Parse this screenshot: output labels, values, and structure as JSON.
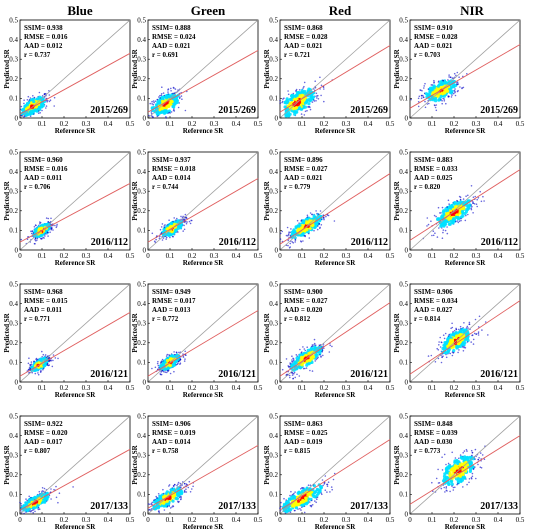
{
  "columns": [
    "Blue",
    "Green",
    "Red",
    "NIR"
  ],
  "colors": {
    "one_to_one_line": "#a0a0a0",
    "fit_line": "#e06060",
    "density_low": "#0000c8",
    "density_mid": "#00e0ff",
    "density_high": "#ffff00",
    "density_peak": "#ff0000"
  },
  "chart_data": [
    {
      "type": "scatter",
      "panel": "blue-2015-269",
      "band": "Blue",
      "date": "2015/269",
      "xlabel": "Reference SR",
      "ylabel": "Predicted SR",
      "xlim": [
        0,
        0.5
      ],
      "ylim": [
        0,
        0.5
      ],
      "xticks": [
        "0",
        "0.1",
        "0.2",
        "0.3",
        "0.4",
        "0.5"
      ],
      "yticks": [
        "0",
        "0.1",
        "0.2",
        "0.3",
        "0.4",
        "0.5"
      ],
      "stats": [
        "SSIM= 0.938",
        "RMSE = 0.016",
        "AAD = 0.012",
        "r =  0.737"
      ],
      "fit": {
        "slope": 0.62,
        "intercept": 0.02
      },
      "density": {
        "center": [
          0.06,
          0.06
        ],
        "spread": [
          0.035,
          0.03
        ],
        "corr": 0.6
      }
    },
    {
      "type": "scatter",
      "panel": "green-2015-269",
      "band": "Green",
      "date": "2015/269",
      "xlabel": "Reference SR",
      "ylabel": "Predicted SR",
      "xlim": [
        0,
        0.5
      ],
      "ylim": [
        0,
        0.5
      ],
      "xticks": [
        "0",
        "0.1",
        "0.2",
        "0.3",
        "0.4",
        "0.5"
      ],
      "yticks": [
        "0",
        "0.1",
        "0.2",
        "0.3",
        "0.4",
        "0.5"
      ],
      "stats": [
        "SSIM= 0.888",
        "RMSE = 0.024",
        "AAD = 0.021",
        "r =  0.691"
      ],
      "fit": {
        "slope": 0.63,
        "intercept": 0.03
      },
      "density": {
        "center": [
          0.08,
          0.07
        ],
        "spread": [
          0.04,
          0.035
        ],
        "corr": 0.55
      }
    },
    {
      "type": "scatter",
      "panel": "red-2015-269",
      "band": "Red",
      "date": "2015/269",
      "xlabel": "Reference SR",
      "ylabel": "Predicted SR",
      "xlim": [
        0,
        0.5
      ],
      "ylim": [
        0,
        0.5
      ],
      "xticks": [
        "0",
        "0.1",
        "0.2",
        "0.3",
        "0.4",
        "0.5"
      ],
      "yticks": [
        "0",
        "0.1",
        "0.2",
        "0.3",
        "0.4",
        "0.5"
      ],
      "stats": [
        "SSIM= 0.868",
        "RMSE = 0.028",
        "AAD = 0.021",
        "r =  0.721"
      ],
      "fit": {
        "slope": 0.68,
        "intercept": 0.03
      },
      "density": {
        "center": [
          0.08,
          0.08
        ],
        "spread": [
          0.05,
          0.045
        ],
        "corr": 0.6
      }
    },
    {
      "type": "scatter",
      "panel": "nir-2015-269",
      "band": "NIR",
      "date": "2015/269",
      "xlabel": "Reference SR",
      "ylabel": "Predicted SR",
      "xlim": [
        0,
        0.5
      ],
      "ylim": [
        0,
        0.5
      ],
      "xticks": [
        "0",
        "0.1",
        "0.2",
        "0.3",
        "0.4",
        "0.5"
      ],
      "yticks": [
        "0",
        "0.1",
        "0.2",
        "0.3",
        "0.4",
        "0.5"
      ],
      "stats": [
        "SSIM= 0.910",
        "RMSE = 0.028",
        "AAD = 0.021",
        "r =  0.703"
      ],
      "fit": {
        "slope": 0.65,
        "intercept": 0.05
      },
      "density": {
        "center": [
          0.14,
          0.14
        ],
        "spread": [
          0.045,
          0.035
        ],
        "corr": 0.55
      }
    },
    {
      "type": "scatter",
      "panel": "blue-2016-112",
      "band": "Blue",
      "date": "2016/112",
      "xlabel": "Reference SR",
      "ylabel": "Predicted SR",
      "xlim": [
        0,
        0.5
      ],
      "ylim": [
        0,
        0.5
      ],
      "xticks": [
        "0",
        "0.1",
        "0.2",
        "0.3",
        "0.4",
        "0.5"
      ],
      "yticks": [
        "0",
        "0.1",
        "0.2",
        "0.3",
        "0.4",
        "0.5"
      ],
      "stats": [
        "SSIM= 0.960",
        "RMSE = 0.016",
        "AAD = 0.011",
        "r =  0.706"
      ],
      "fit": {
        "slope": 0.6,
        "intercept": 0.04
      },
      "density": {
        "center": [
          0.1,
          0.1
        ],
        "spread": [
          0.025,
          0.022
        ],
        "corr": 0.6
      }
    },
    {
      "type": "scatter",
      "panel": "green-2016-112",
      "band": "Green",
      "date": "2016/112",
      "xlabel": "Reference SR",
      "ylabel": "Predicted SR",
      "xlim": [
        0,
        0.5
      ],
      "ylim": [
        0,
        0.5
      ],
      "xticks": [
        "0",
        "0.1",
        "0.2",
        "0.3",
        "0.4",
        "0.5"
      ],
      "yticks": [
        "0",
        "0.1",
        "0.2",
        "0.3",
        "0.4",
        "0.5"
      ],
      "stats": [
        "SSIM= 0.937",
        "RMSE = 0.018",
        "AAD = 0.014",
        "r =  0.744"
      ],
      "fit": {
        "slope": 0.65,
        "intercept": 0.04
      },
      "density": {
        "center": [
          0.11,
          0.11
        ],
        "spread": [
          0.03,
          0.025
        ],
        "corr": 0.65
      }
    },
    {
      "type": "scatter",
      "panel": "red-2016-112",
      "band": "Red",
      "date": "2016/112",
      "xlabel": "Reference SR",
      "ylabel": "Predicted SR",
      "xlim": [
        0,
        0.5
      ],
      "ylim": [
        0,
        0.5
      ],
      "xticks": [
        "0",
        "0.1",
        "0.2",
        "0.3",
        "0.4",
        "0.5"
      ],
      "yticks": [
        "0",
        "0.1",
        "0.2",
        "0.3",
        "0.4",
        "0.5"
      ],
      "stats": [
        "SSIM= 0.896",
        "RMSE = 0.027",
        "AAD = 0.021",
        "r =  0.779"
      ],
      "fit": {
        "slope": 0.72,
        "intercept": 0.03
      },
      "density": {
        "center": [
          0.12,
          0.12
        ],
        "spread": [
          0.045,
          0.04
        ],
        "corr": 0.75
      }
    },
    {
      "type": "scatter",
      "panel": "nir-2016-112",
      "band": "NIR",
      "date": "2016/112",
      "xlabel": "Reference SR",
      "ylabel": "Predicted SR",
      "xlim": [
        0,
        0.5
      ],
      "ylim": [
        0,
        0.5
      ],
      "xticks": [
        "0",
        "0.1",
        "0.2",
        "0.3",
        "0.4",
        "0.5"
      ],
      "yticks": [
        "0",
        "0.1",
        "0.2",
        "0.3",
        "0.4",
        "0.5"
      ],
      "stats": [
        "SSIM= 0.883",
        "RMSE = 0.033",
        "AAD = 0.025",
        "r =  0.820"
      ],
      "fit": {
        "slope": 0.72,
        "intercept": 0.05
      },
      "density": {
        "center": [
          0.2,
          0.19
        ],
        "spread": [
          0.05,
          0.045
        ],
        "corr": 0.7
      }
    },
    {
      "type": "scatter",
      "panel": "blue-2016-121",
      "band": "Blue",
      "date": "2016/121",
      "xlabel": "Reference SR",
      "ylabel": "Predicted SR",
      "xlim": [
        0,
        0.5
      ],
      "ylim": [
        0,
        0.5
      ],
      "xticks": [
        "0",
        "0.1",
        "0.2",
        "0.3",
        "0.4",
        "0.5"
      ],
      "yticks": [
        "0",
        "0.1",
        "0.2",
        "0.3",
        "0.4",
        "0.5"
      ],
      "stats": [
        "SSIM= 0.968",
        "RMSE = 0.015",
        "AAD = 0.011",
        "r =  0.771"
      ],
      "fit": {
        "slope": 0.65,
        "intercept": 0.03
      },
      "density": {
        "center": [
          0.09,
          0.09
        ],
        "spread": [
          0.025,
          0.022
        ],
        "corr": 0.65
      }
    },
    {
      "type": "scatter",
      "panel": "green-2016-121",
      "band": "Green",
      "date": "2016/121",
      "xlabel": "Reference SR",
      "ylabel": "Predicted SR",
      "xlim": [
        0,
        0.5
      ],
      "ylim": [
        0,
        0.5
      ],
      "xticks": [
        "0",
        "0.1",
        "0.2",
        "0.3",
        "0.4",
        "0.5"
      ],
      "yticks": [
        "0",
        "0.1",
        "0.2",
        "0.3",
        "0.4",
        "0.5"
      ],
      "stats": [
        "SSIM= 0.949",
        "RMSE = 0.017",
        "AAD = 0.013",
        "r =  0.772"
      ],
      "fit": {
        "slope": 0.67,
        "intercept": 0.03
      },
      "density": {
        "center": [
          0.1,
          0.1
        ],
        "spread": [
          0.028,
          0.025
        ],
        "corr": 0.65
      }
    },
    {
      "type": "scatter",
      "panel": "red-2016-121",
      "band": "Red",
      "date": "2016/121",
      "xlabel": "Reference SR",
      "ylabel": "Predicted SR",
      "xlim": [
        0,
        0.5
      ],
      "ylim": [
        0,
        0.5
      ],
      "xticks": [
        "0",
        "0.1",
        "0.2",
        "0.3",
        "0.4",
        "0.5"
      ],
      "yticks": [
        "0",
        "0.1",
        "0.2",
        "0.3",
        "0.4",
        "0.5"
      ],
      "stats": [
        "SSIM= 0.900",
        "RMSE = 0.027",
        "AAD = 0.020",
        "r =  0.812"
      ],
      "fit": {
        "slope": 0.75,
        "intercept": 0.03
      },
      "density": {
        "center": [
          0.12,
          0.12
        ],
        "spread": [
          0.045,
          0.04
        ],
        "corr": 0.75
      }
    },
    {
      "type": "scatter",
      "panel": "nir-2016-121",
      "band": "NIR",
      "date": "2016/121",
      "xlabel": "Reference SR",
      "ylabel": "Predicted SR",
      "xlim": [
        0,
        0.5
      ],
      "ylim": [
        0,
        0.5
      ],
      "xticks": [
        "0",
        "0.1",
        "0.2",
        "0.3",
        "0.4",
        "0.5"
      ],
      "yticks": [
        "0",
        "0.1",
        "0.2",
        "0.3",
        "0.4",
        "0.5"
      ],
      "stats": [
        "SSIM= 0.906",
        "RMSE = 0.034",
        "AAD = 0.027",
        "r =  0.814"
      ],
      "fit": {
        "slope": 0.75,
        "intercept": 0.04
      },
      "density": {
        "center": [
          0.21,
          0.21
        ],
        "spread": [
          0.045,
          0.04
        ],
        "corr": 0.65
      }
    },
    {
      "type": "scatter",
      "panel": "blue-2017-133",
      "band": "Blue",
      "date": "2017/133",
      "xlabel": "Reference SR",
      "ylabel": "Predicted SR",
      "xlim": [
        0,
        0.5
      ],
      "ylim": [
        0,
        0.5
      ],
      "xticks": [
        "0",
        "0.1",
        "0.2",
        "0.3",
        "0.4",
        "0.5"
      ],
      "yticks": [
        "0",
        "0.1",
        "0.2",
        "0.3",
        "0.4",
        "0.5"
      ],
      "stats": [
        "SSIM= 0.922",
        "RMSE = 0.020",
        "AAD = 0.017",
        "r =  0.807"
      ],
      "fit": {
        "slope": 0.62,
        "intercept": 0.02
      },
      "density": {
        "center": [
          0.07,
          0.06
        ],
        "spread": [
          0.04,
          0.03
        ],
        "corr": 0.75
      }
    },
    {
      "type": "scatter",
      "panel": "green-2017-133",
      "band": "Green",
      "date": "2017/133",
      "xlabel": "Reference SR",
      "ylabel": "Predicted SR",
      "xlim": [
        0,
        0.5
      ],
      "ylim": [
        0,
        0.5
      ],
      "xticks": [
        "0",
        "0.1",
        "0.2",
        "0.3",
        "0.4",
        "0.5"
      ],
      "yticks": [
        "0",
        "0.1",
        "0.2",
        "0.3",
        "0.4",
        "0.5"
      ],
      "stats": [
        "SSIM= 0.906",
        "RMSE = 0.019",
        "AAD = 0.014",
        "r =  0.758"
      ],
      "fit": {
        "slope": 0.64,
        "intercept": 0.03
      },
      "density": {
        "center": [
          0.09,
          0.08
        ],
        "spread": [
          0.045,
          0.035
        ],
        "corr": 0.75
      }
    },
    {
      "type": "scatter",
      "panel": "red-2017-133",
      "band": "Red",
      "date": "2017/133",
      "xlabel": "Reference SR",
      "ylabel": "Predicted SR",
      "xlim": [
        0,
        0.5
      ],
      "ylim": [
        0,
        0.5
      ],
      "xticks": [
        "0",
        "0.1",
        "0.2",
        "0.3",
        "0.4",
        "0.5"
      ],
      "yticks": [
        "0",
        "0.1",
        "0.2",
        "0.3",
        "0.4",
        "0.5"
      ],
      "stats": [
        "SSIM= 0.863",
        "RMSE = 0.025",
        "AAD = 0.019",
        "r =  0.815"
      ],
      "fit": {
        "slope": 0.72,
        "intercept": 0.02
      },
      "density": {
        "center": [
          0.1,
          0.08
        ],
        "spread": [
          0.06,
          0.045
        ],
        "corr": 0.8
      }
    },
    {
      "type": "scatter",
      "panel": "nir-2017-133",
      "band": "NIR",
      "date": "2017/133",
      "xlabel": "Reference SR",
      "ylabel": "Predicted SR",
      "xlim": [
        0,
        0.5
      ],
      "ylim": [
        0,
        0.5
      ],
      "xticks": [
        "0",
        "0.1",
        "0.2",
        "0.3",
        "0.4",
        "0.5"
      ],
      "yticks": [
        "0",
        "0.1",
        "0.2",
        "0.3",
        "0.4",
        "0.5"
      ],
      "stats": [
        "SSIM= 0.848",
        "RMSE = 0.039",
        "AAD = 0.030",
        "r =  0.773"
      ],
      "fit": {
        "slope": 0.7,
        "intercept": 0.05
      },
      "density": {
        "center": [
          0.22,
          0.22
        ],
        "spread": [
          0.05,
          0.05
        ],
        "corr": 0.6
      }
    }
  ]
}
